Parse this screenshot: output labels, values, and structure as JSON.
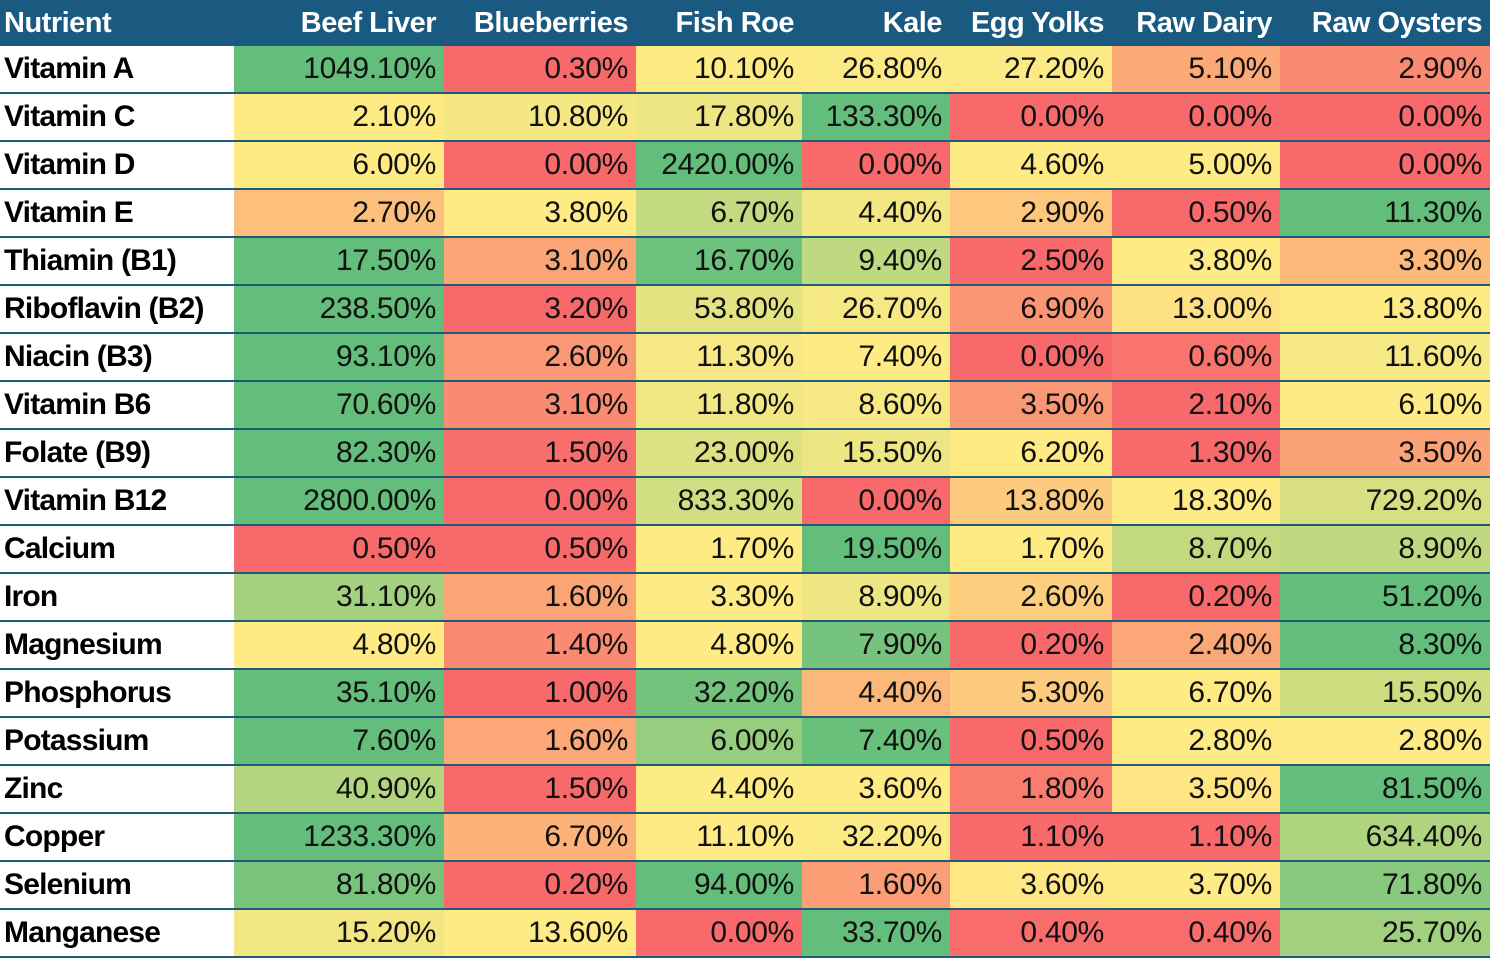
{
  "chart_data": {
    "type": "heatmap",
    "color_scale": {
      "min": "#F8696B",
      "mid": "#FFEB84",
      "max": "#63BE7B",
      "mid_rule": "50th percentile per row"
    },
    "header_color": "#1B5A80",
    "row_header_label": "Nutrient",
    "columns": [
      "Beef Liver",
      "Blueberries",
      "Fish Roe",
      "Kale",
      "Egg Yolks",
      "Raw Dairy",
      "Raw Oysters"
    ],
    "rows": [
      {
        "name": "Vitamin A",
        "values": [
          1049.1,
          0.3,
          10.1,
          26.8,
          27.2,
          5.1,
          2.9
        ]
      },
      {
        "name": "Vitamin C",
        "values": [
          2.1,
          10.8,
          17.8,
          133.3,
          0.0,
          0.0,
          0.0
        ]
      },
      {
        "name": "Vitamin D",
        "values": [
          6.0,
          0.0,
          2420.0,
          0.0,
          4.6,
          5.0,
          0.0
        ]
      },
      {
        "name": "Vitamin E",
        "values": [
          2.7,
          3.8,
          6.7,
          4.4,
          2.9,
          0.5,
          11.3
        ]
      },
      {
        "name": "Thiamin (B1)",
        "values": [
          17.5,
          3.1,
          16.7,
          9.4,
          2.5,
          3.8,
          3.3
        ]
      },
      {
        "name": "Riboflavin (B2)",
        "values": [
          238.5,
          3.2,
          53.8,
          26.7,
          6.9,
          13.0,
          13.8
        ]
      },
      {
        "name": "Niacin (B3)",
        "values": [
          93.1,
          2.6,
          11.3,
          7.4,
          0.0,
          0.6,
          11.6
        ]
      },
      {
        "name": "Vitamin B6",
        "values": [
          70.6,
          3.1,
          11.8,
          8.6,
          3.5,
          2.1,
          6.1
        ]
      },
      {
        "name": "Folate (B9)",
        "values": [
          82.3,
          1.5,
          23.0,
          15.5,
          6.2,
          1.3,
          3.5
        ]
      },
      {
        "name": "Vitamin B12",
        "values": [
          2800.0,
          0.0,
          833.3,
          0.0,
          13.8,
          18.3,
          729.2
        ]
      },
      {
        "name": "Calcium",
        "values": [
          0.5,
          0.5,
          1.7,
          19.5,
          1.7,
          8.7,
          8.9
        ]
      },
      {
        "name": "Iron",
        "values": [
          31.1,
          1.6,
          3.3,
          8.9,
          2.6,
          0.2,
          51.2
        ]
      },
      {
        "name": "Magnesium",
        "values": [
          4.8,
          1.4,
          4.8,
          7.9,
          0.2,
          2.4,
          8.3
        ]
      },
      {
        "name": "Phosphorus",
        "values": [
          35.1,
          1.0,
          32.2,
          4.4,
          5.3,
          6.7,
          15.5
        ]
      },
      {
        "name": "Potassium",
        "values": [
          7.6,
          1.6,
          6.0,
          7.4,
          0.5,
          2.8,
          2.8
        ]
      },
      {
        "name": "Zinc",
        "values": [
          40.9,
          1.5,
          4.4,
          3.6,
          1.8,
          3.5,
          81.5
        ]
      },
      {
        "name": "Copper",
        "values": [
          1233.3,
          6.7,
          11.1,
          32.2,
          1.1,
          1.1,
          634.4
        ]
      },
      {
        "name": "Selenium",
        "values": [
          81.8,
          0.2,
          94.0,
          1.6,
          3.6,
          3.7,
          71.8
        ]
      },
      {
        "name": "Manganese",
        "values": [
          15.2,
          13.6,
          0.0,
          33.7,
          0.4,
          0.4,
          25.7
        ]
      }
    ]
  }
}
